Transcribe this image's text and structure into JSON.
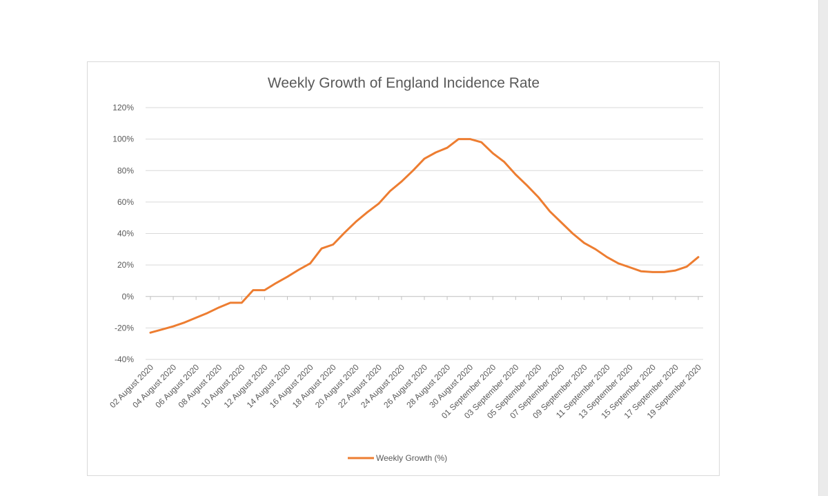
{
  "chart_data": {
    "type": "line",
    "title": "Weekly Growth of England Incidence Rate",
    "xlabel": "",
    "ylabel": "",
    "ylim": [
      -40,
      120
    ],
    "yticks": [
      "120%",
      "100%",
      "80%",
      "60%",
      "40%",
      "20%",
      "0%",
      "-20%",
      "-40%"
    ],
    "grid": true,
    "legend": "bottom",
    "x": [
      "02 August 2020",
      "03 August 2020",
      "04 August 2020",
      "05 August 2020",
      "06 August 2020",
      "07 August 2020",
      "08 August 2020",
      "09 August 2020",
      "10 August 2020",
      "11 August 2020",
      "12 August 2020",
      "13 August 2020",
      "14 August 2020",
      "15 August 2020",
      "16 August 2020",
      "17 August 2020",
      "18 August 2020",
      "19 August 2020",
      "20 August 2020",
      "21 August 2020",
      "22 August 2020",
      "23 August 2020",
      "24 August 2020",
      "25 August 2020",
      "26 August 2020",
      "27 August 2020",
      "28 August 2020",
      "29 August 2020",
      "30 August 2020",
      "31 August 2020",
      "01 September 2020",
      "02 September 2020",
      "03 September 2020",
      "04 September 2020",
      "05 September 2020",
      "06 September 2020",
      "07 September 2020",
      "08 September 2020",
      "09 September 2020",
      "10 September 2020",
      "11 September 2020",
      "12 September 2020",
      "13 September 2020",
      "14 September 2020",
      "15 September 2020",
      "16 September 2020",
      "17 September 2020",
      "18 September 2020",
      "19 September 2020"
    ],
    "xtick_labels": [
      "02 August 2020",
      "04 August 2020",
      "06 August 2020",
      "08 August 2020",
      "10 August 2020",
      "12 August 2020",
      "14 August 2020",
      "16 August 2020",
      "18 August 2020",
      "20 August 2020",
      "22 August 2020",
      "24 August 2020",
      "26 August 2020",
      "28 August 2020",
      "30 August 2020",
      "01 September 2020",
      "03 September 2020",
      "05 September 2020",
      "07 September 2020",
      "09 September 2020",
      "11 September 2020",
      "13 September 2020",
      "15 September 2020",
      "17 September 2020",
      "19 September 2020"
    ],
    "series": [
      {
        "name": "Weekly Growth (%)",
        "color": "#ED7D31",
        "values": [
          -23,
          -21,
          -19,
          -16.5,
          -13.5,
          -10.5,
          -7,
          -4,
          -4,
          4,
          4,
          8.5,
          12.5,
          17,
          21,
          30.5,
          33,
          40.5,
          47.5,
          53.5,
          59,
          67,
          73,
          80,
          87.5,
          91.5,
          94.5,
          100,
          100,
          98,
          91,
          85.5,
          77.5,
          70.5,
          63,
          54,
          47,
          40,
          34,
          30,
          25,
          21,
          18.5,
          16,
          15.5,
          15.5,
          16.5,
          19,
          25
        ]
      }
    ]
  }
}
